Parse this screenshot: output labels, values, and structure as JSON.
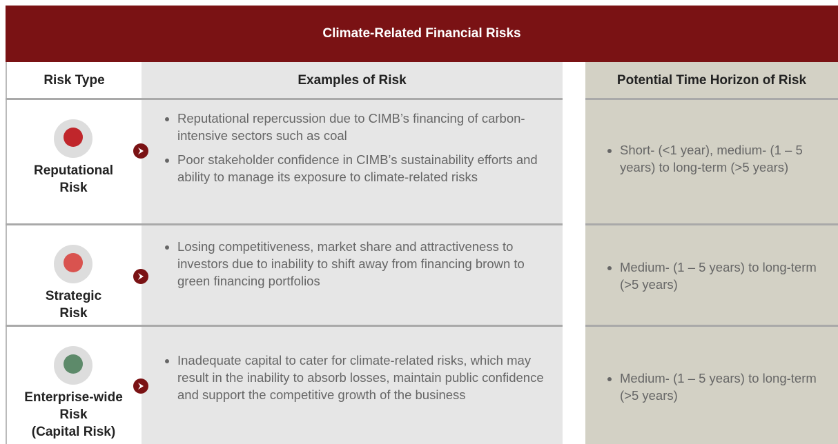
{
  "title": "Climate-Related Financial Risks",
  "headers": [
    "Risk Type",
    "Examples of Risk",
    "Potential Time Horizon of Risk"
  ],
  "rows": [
    {
      "risk_type": [
        "Reputational",
        "Risk"
      ],
      "examples": [
        "Reputational repercussion due to CIMB’s financing of carbon-intensive sectors such as coal",
        "Poor stakeholder confidence in CIMB’s sustainability efforts and ability to manage its exposure to climate-related risks"
      ],
      "horizon": [
        "Short- (<1 year), medium- (1 – 5 years) to long-term (>5 years)"
      ]
    },
    {
      "risk_type": [
        "Strategic",
        "Risk"
      ],
      "examples": [
        "Losing competitiveness, market share and attractiveness to investors due to inability to shift away from financing brown to green financing portfolios"
      ],
      "horizon": [
        "Medium- (1 – 5 years) to long-term (>5 years)"
      ]
    },
    {
      "risk_type": [
        "Enterprise-wide",
        "Risk",
        "(Capital Risk)"
      ],
      "examples": [
        "Inadequate capital to cater for climate-related risks, which may result in the inability to absorb losses, maintain public confidence and support the competitive growth of the business"
      ],
      "horizon": [
        "Medium- (1 – 5 years) to long-term (>5 years)"
      ]
    }
  ]
}
